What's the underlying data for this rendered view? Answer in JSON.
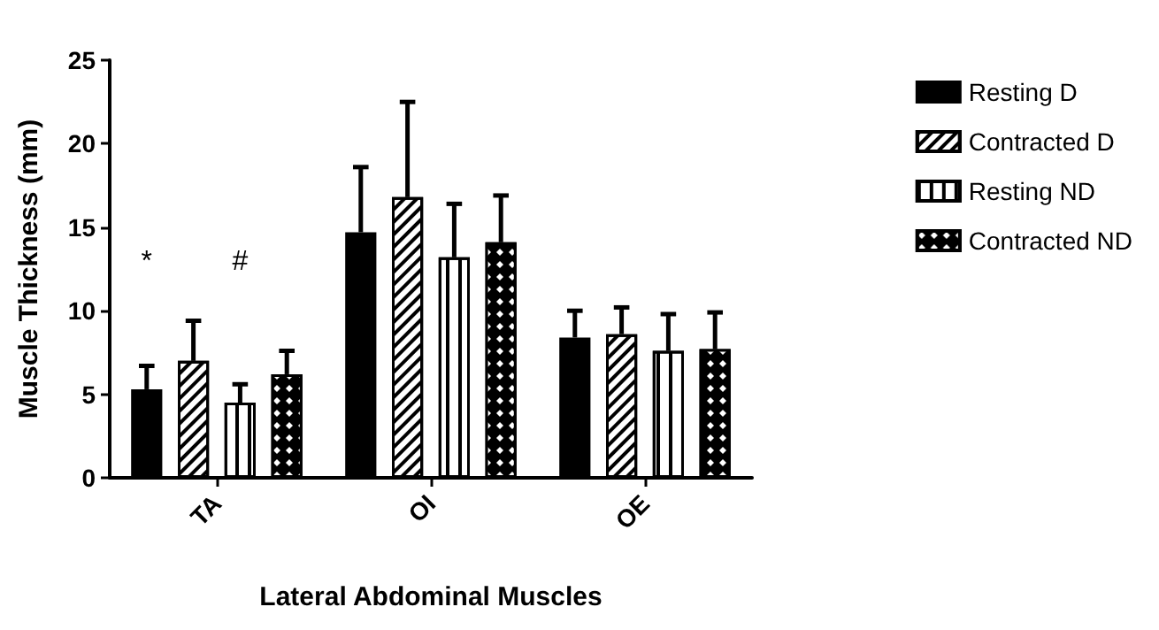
{
  "chart_data": {
    "type": "bar",
    "xlabel": "Lateral Abdominal Muscles",
    "ylabel": "Muscle Thickness (mm)",
    "categories": [
      "TA",
      "OI",
      "OE"
    ],
    "series": [
      {
        "name": "Resting D",
        "color": "#000000",
        "values": [
          5.3,
          14.7,
          8.4
        ],
        "errors": [
          [
            5.3,
            6.7
          ],
          [
            14.7,
            18.6
          ],
          [
            8.4,
            10.0
          ]
        ]
      },
      {
        "name": "Contracted D",
        "color": "#ffffff",
        "values": [
          7.0,
          16.8,
          8.6
        ],
        "errors": [
          [
            7.0,
            9.4
          ],
          [
            16.8,
            22.5
          ],
          [
            8.6,
            10.2
          ]
        ]
      },
      {
        "name": "Resting ND",
        "color": "#ffffff",
        "values": [
          4.5,
          13.2,
          7.6
        ],
        "errors": [
          [
            4.5,
            5.6
          ],
          [
            13.2,
            16.4
          ],
          [
            7.6,
            9.8
          ]
        ]
      },
      {
        "name": "Contracted ND",
        "color": "#000000",
        "values": [
          6.2,
          14.1,
          7.7
        ],
        "errors": [
          [
            6.2,
            7.6
          ],
          [
            14.1,
            16.9
          ],
          [
            7.7,
            9.9
          ]
        ]
      }
    ],
    "annotations": [
      "*",
      "#"
    ],
    "ylim": [
      0,
      25
    ],
    "yticks": [
      0,
      5,
      10,
      15,
      20,
      25
    ],
    "grid": false,
    "legend": "right"
  }
}
